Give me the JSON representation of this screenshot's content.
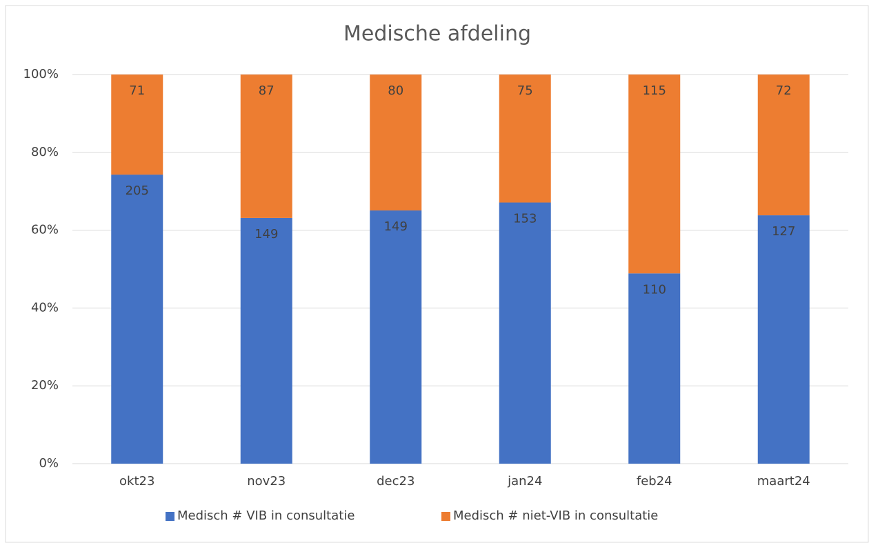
{
  "chart_data": {
    "type": "bar",
    "stacking": "percent",
    "title": "Medische afdeling",
    "categories": [
      "okt23",
      "nov23",
      "dec23",
      "jan24",
      "feb24",
      "maart24"
    ],
    "series": [
      {
        "name": "Medisch # VIB in consultatie",
        "color": "#4472c4",
        "values": [
          205,
          149,
          149,
          153,
          110,
          127
        ]
      },
      {
        "name": "Medisch # niet-VIB in consultatie",
        "color": "#ed7d31",
        "values": [
          71,
          87,
          80,
          75,
          115,
          72
        ]
      }
    ],
    "ylim": [
      0,
      100
    ],
    "yticks": [
      {
        "value": 0,
        "label": "0%"
      },
      {
        "value": 20,
        "label": "20%"
      },
      {
        "value": 40,
        "label": "40%"
      },
      {
        "value": 60,
        "label": "60%"
      },
      {
        "value": 80,
        "label": "80%"
      },
      {
        "value": 100,
        "label": "100%"
      }
    ],
    "grid": true,
    "legend": "bottom"
  }
}
